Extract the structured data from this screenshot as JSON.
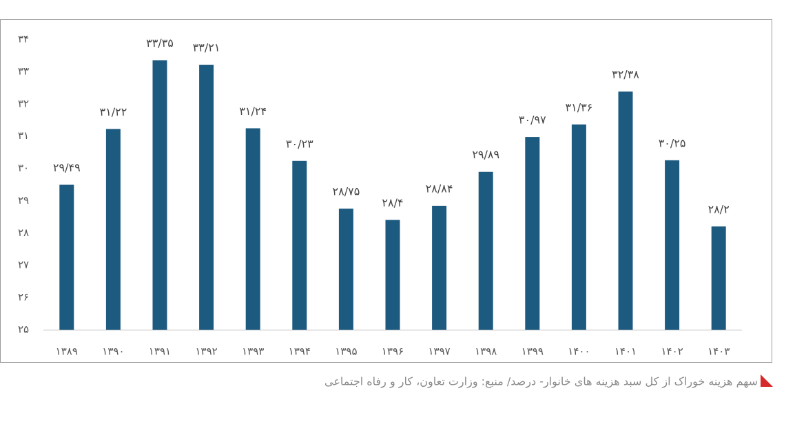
{
  "chart_data": {
    "type": "bar",
    "caption": "سهم هزینه خوراک از کل سبد هزینه های خانوار- درصد/ منبع: وزارت تعاون، کار و رفاه اجتماعی",
    "categories": [
      "۱۳۸۹",
      "۱۳۹۰",
      "۱۳۹۱",
      "۱۳۹۲",
      "۱۳۹۳",
      "۱۳۹۴",
      "۱۳۹۵",
      "۱۳۹۶",
      "۱۳۹۷",
      "۱۳۹۸",
      "۱۳۹۹",
      "۱۴۰۰",
      "۱۴۰۱",
      "۱۴۰۲",
      "۱۴۰۳"
    ],
    "values": [
      29.49,
      31.22,
      33.35,
      33.21,
      31.24,
      30.23,
      28.75,
      28.4,
      28.84,
      29.89,
      30.97,
      31.36,
      32.38,
      30.25,
      28.2
    ],
    "value_labels": [
      "۲۹/۴۹",
      "۳۱/۲۲",
      "۳۳/۳۵",
      "۳۳/۲۱",
      "۳۱/۲۴",
      "۳۰/۲۳",
      "۲۸/۷۵",
      "۲۸/۴",
      "۲۸/۸۴",
      "۲۹/۸۹",
      "۳۰/۹۷",
      "۳۱/۳۶",
      "۳۲/۳۸",
      "۳۰/۲۵",
      "۲۸/۲"
    ],
    "color": "#1d5a80",
    "ylim": [
      25,
      34
    ],
    "yticks": [
      {
        "value": 25,
        "label": "۲۵"
      },
      {
        "value": 26,
        "label": "۲۶"
      },
      {
        "value": 27,
        "label": "۲۷"
      },
      {
        "value": 28,
        "label": "۲۸"
      },
      {
        "value": 29,
        "label": "۲۹"
      },
      {
        "value": 30,
        "label": "۳۰"
      },
      {
        "value": 31,
        "label": "۳۱"
      },
      {
        "value": 32,
        "label": "۳۲"
      },
      {
        "value": 33,
        "label": "۳۳"
      },
      {
        "value": 34,
        "label": "۳۴"
      }
    ],
    "grid": false
  }
}
